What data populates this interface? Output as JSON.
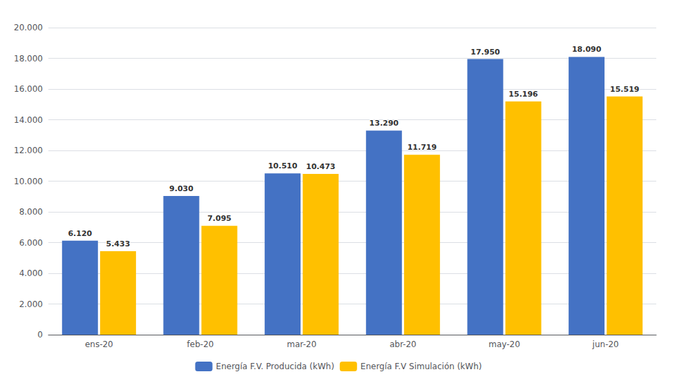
{
  "chart_data": {
    "type": "bar",
    "categories": [
      "ens-20",
      "feb-20",
      "mar-20",
      "abr-20",
      "may-20",
      "jun-20"
    ],
    "series": [
      {
        "name": "Energía F.V. Producida (kWh)",
        "color": "#4472C4",
        "values": [
          6120,
          9030,
          10510,
          13290,
          17950,
          18090
        ],
        "value_labels": [
          "6.120",
          "9.030",
          "10.510",
          "13.290",
          "17.950",
          "18.090"
        ]
      },
      {
        "name": "Energía F.V Simulación (kWh)",
        "color": "#FFC000",
        "values": [
          5433,
          7095,
          10473,
          11719,
          15196,
          15519
        ],
        "value_labels": [
          "5.433",
          "7.095",
          "10.473",
          "11.719",
          "15.196",
          "15.519"
        ]
      }
    ],
    "ylim": [
      0,
      20000
    ],
    "yticks": [
      0,
      {
        "value": 2000,
        "label": "2.000"
      },
      {
        "value": 4000,
        "label": "4.000"
      },
      {
        "value": 6000,
        "label": "6.000"
      },
      {
        "value": 8000,
        "label": "8.000"
      },
      {
        "value": 10000,
        "label": "10.000"
      },
      {
        "value": 12000,
        "label": "12.000"
      },
      {
        "value": 14000,
        "label": "14.000"
      },
      {
        "value": 16000,
        "label": "16.000"
      },
      {
        "value": 18000,
        "label": "18.000"
      },
      {
        "value": 20000,
        "label": "20.000"
      }
    ],
    "grid": true,
    "legend": "bottom",
    "data_labels": true
  }
}
